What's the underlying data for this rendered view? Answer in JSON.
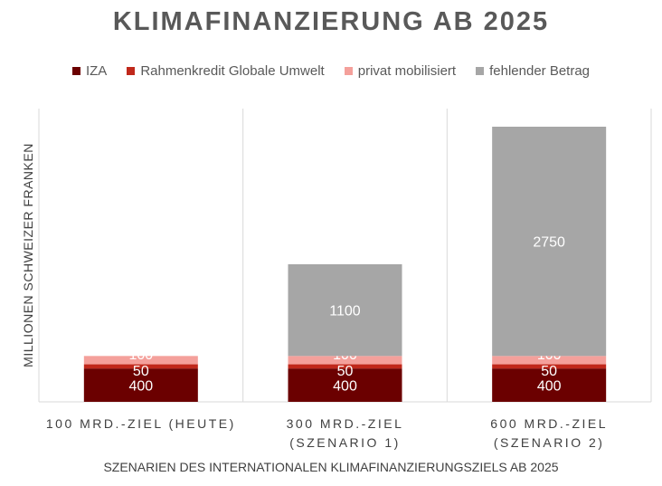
{
  "chart_data": {
    "type": "bar",
    "stacked": true,
    "title": "KLIMAFINANZIERUNG AB 2025",
    "xlabel": "SZENARIEN DES INTERNATIONALEN KLIMAFINANZIERUNGSZIELS AB 2025",
    "ylabel": "MILLIONEN SCHWEIZER FRANKEN",
    "categories": [
      [
        "100 MRD.-ZIEL (HEUTE)"
      ],
      [
        "300 MRD.-ZIEL",
        "(SZENARIO 1)"
      ],
      [
        "600 MRD.-ZIEL",
        "(SZENARIO 2)"
      ]
    ],
    "series": [
      {
        "name": "IZA",
        "color": "#6b0000",
        "values": [
          400,
          400,
          400
        ],
        "label_color": "#ffffff"
      },
      {
        "name": "Rahmenkredit Globale Umwelt",
        "color": "#c0281b",
        "values": [
          50,
          50,
          50
        ],
        "label_color": "#ffffff"
      },
      {
        "name": "privat mobilisiert",
        "color": "#f4a09b",
        "values": [
          100,
          100,
          100
        ],
        "label_color": "#ffffff"
      },
      {
        "name": "fehlender Betrag",
        "color": "#a6a6a6",
        "values": [
          0,
          1100,
          2750
        ],
        "label_color": "#ffffff"
      }
    ],
    "ylim": [
      0,
      4600
    ],
    "grid": false,
    "category_separators": true,
    "legend_position": "top"
  }
}
